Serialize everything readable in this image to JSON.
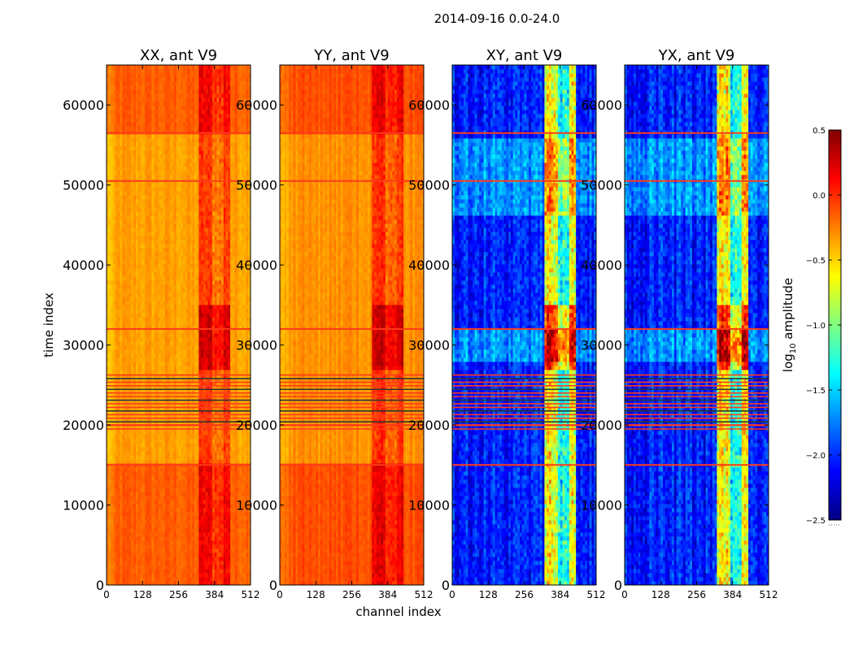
{
  "figure_title": "2014-09-16 0.0-24.0",
  "chart_data": [
    {
      "type": "heatmap",
      "title": "XX, ant V9",
      "xlabel": "",
      "ylabel": "time index",
      "xlim": [
        0,
        512
      ],
      "ylim": [
        0,
        65000
      ],
      "xticks": [
        0,
        128,
        256,
        384,
        512
      ],
      "yticks": [
        0,
        10000,
        20000,
        30000,
        40000,
        50000,
        60000
      ],
      "base_value": -0.35,
      "features": {
        "bright_channel_band": [
          330,
          440
        ],
        "strong_time_band": [
          27000,
          35000
        ],
        "flagged_time_block": [
          19500,
          26500
        ],
        "elevated_time_blocks": [
          [
            0,
            15000
          ],
          [
            56500,
            65000
          ]
        ]
      }
    },
    {
      "type": "heatmap",
      "title": "YY, ant V9",
      "xlabel": "channel index",
      "ylabel": "",
      "xlim": [
        0,
        512
      ],
      "ylim": [
        0,
        65000
      ],
      "xticks": [
        0,
        128,
        256,
        384,
        512
      ],
      "yticks": [
        0,
        10000,
        20000,
        30000,
        40000,
        50000,
        60000
      ],
      "base_value": -0.3,
      "features": {
        "bright_channel_band": [
          330,
          440
        ],
        "strong_time_band": [
          27000,
          35000
        ],
        "flagged_time_block": [
          19500,
          26500
        ],
        "elevated_time_blocks": [
          [
            0,
            15000
          ],
          [
            56500,
            65000
          ]
        ]
      }
    },
    {
      "type": "heatmap",
      "title": "XY, ant V9",
      "xlabel": "",
      "ylabel": "",
      "xlim": [
        0,
        512
      ],
      "ylim": [
        0,
        65000
      ],
      "xticks": [
        0,
        128,
        256,
        384,
        512
      ],
      "yticks": [
        0,
        10000,
        20000,
        30000,
        40000,
        50000,
        60000
      ],
      "base_value": -2.05,
      "features": {
        "bright_channel_band": [
          330,
          440
        ],
        "strong_time_band": [
          27000,
          35000
        ],
        "flagged_time_block": [
          19500,
          26500
        ],
        "elevated_time_blocks": [
          [
            46000,
            56000
          ],
          [
            28000,
            32000
          ]
        ]
      }
    },
    {
      "type": "heatmap",
      "title": "YX, ant V9",
      "xlabel": "",
      "ylabel": "",
      "xlim": [
        0,
        512
      ],
      "ylim": [
        0,
        65000
      ],
      "xticks": [
        0,
        128,
        256,
        384,
        512
      ],
      "yticks": [
        0,
        10000,
        20000,
        30000,
        40000,
        50000,
        60000
      ],
      "base_value": -2.05,
      "features": {
        "bright_channel_band": [
          330,
          440
        ],
        "strong_time_band": [
          27000,
          35000
        ],
        "flagged_time_block": [
          19500,
          26500
        ],
        "elevated_time_blocks": [
          [
            46000,
            56000
          ],
          [
            28000,
            32000
          ]
        ]
      }
    }
  ],
  "colorbar": {
    "label_prefix": "log",
    "label_sub": "10",
    "label_suffix": " amplitude",
    "vmin": -2.5,
    "vmax": 0.5,
    "ticks": [
      -2.5,
      -2.0,
      -1.5,
      -1.0,
      -0.5,
      0.0,
      0.5
    ],
    "tick_labels": [
      "−2.5",
      "−2.0",
      "−1.5",
      "−1.0",
      "−0.5",
      "0.0",
      "0.5"
    ],
    "colormap": "jet",
    "colors": [
      "#00007f",
      "#0000ff",
      "#007fff",
      "#00ffff",
      "#7fff7f",
      "#ffff00",
      "#ff7f00",
      "#ff0000",
      "#7f0000"
    ]
  },
  "tick_labels_x": [
    "0",
    "128",
    "256",
    "384",
    "512"
  ],
  "tick_labels_y": [
    "0",
    "10000",
    "20000",
    "30000",
    "40000",
    "50000",
    "60000"
  ]
}
